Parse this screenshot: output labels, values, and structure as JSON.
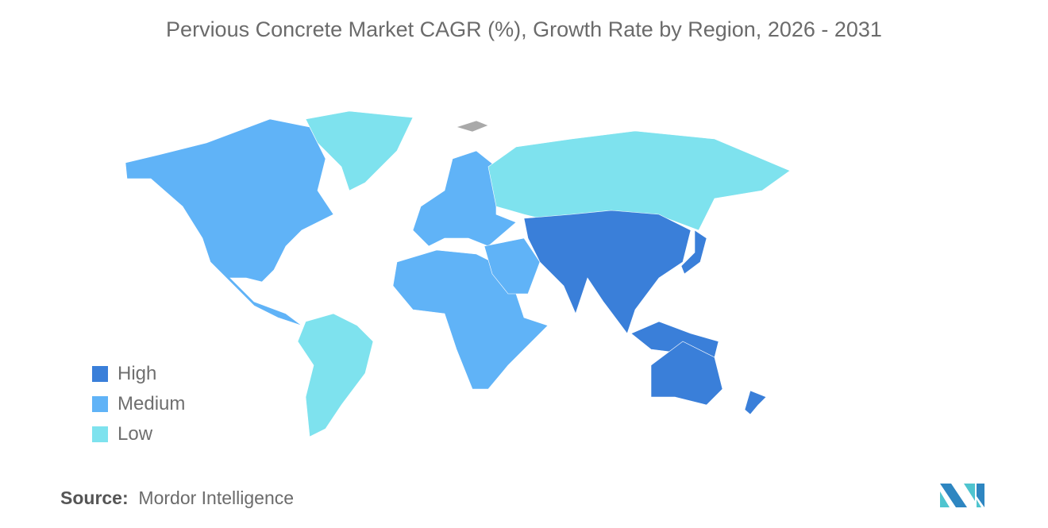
{
  "title": "Pervious Concrete Market CAGR (%), Growth Rate by Region, 2026 - 2031",
  "colors": {
    "High": "#3a7fd9",
    "Medium": "#60b3f7",
    "Low": "#7ee2ee",
    "No data": "#a9a9a9"
  },
  "legend": [
    {
      "label": "High",
      "color": "#3a7fd9"
    },
    {
      "label": "Medium",
      "color": "#60b3f7"
    },
    {
      "label": "Low",
      "color": "#7ee2ee"
    }
  ],
  "regions": {
    "North America": "Medium",
    "Europe": "Medium",
    "Middle East and Africa": "Medium",
    "South America": "Low",
    "Russia": "Low",
    "Greenland": "Low",
    "Asia-Pacific": "High"
  },
  "source": {
    "label": "Source:",
    "value": "Mordor Intelligence"
  }
}
